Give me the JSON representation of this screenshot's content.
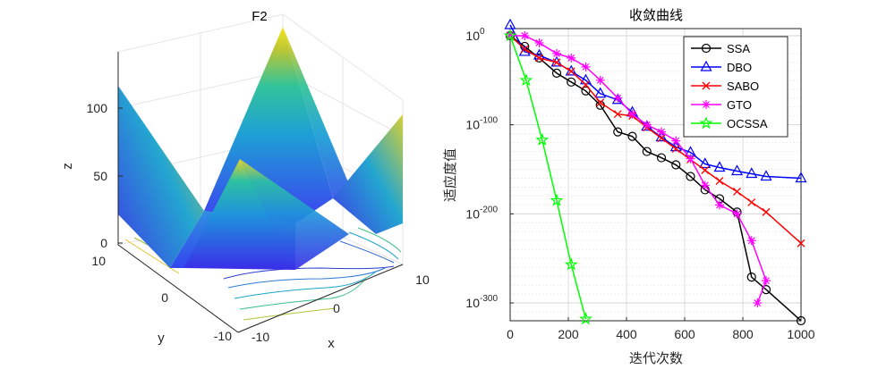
{
  "figure": {
    "left_panel": {
      "title": "F2",
      "xlabel": "x",
      "ylabel": "y",
      "zlabel": "z",
      "x_ticks": [
        "-10",
        "0",
        "10"
      ],
      "y_ticks": [
        "-10",
        "0",
        "10"
      ],
      "z_ticks": [
        "0",
        "50",
        "100"
      ]
    }
  },
  "chart_data": {
    "type": "line",
    "title": "收敛曲线",
    "xlabel": "迭代次数",
    "ylabel": "适应度值",
    "xlim": [
      0,
      1000
    ],
    "ylim_log10": [
      -320,
      8
    ],
    "yscale": "log",
    "x_ticks": [
      "0",
      "200",
      "400",
      "600",
      "800",
      "1000"
    ],
    "y_ticks": [
      {
        "base": "10",
        "exp": "0",
        "value_log10": 0
      },
      {
        "base": "10",
        "exp": "-100",
        "value_log10": -100
      },
      {
        "base": "10",
        "exp": "-200",
        "value_log10": -200
      },
      {
        "base": "10",
        "exp": "-300",
        "value_log10": -300
      }
    ],
    "legend_position": "top-right",
    "series": [
      {
        "name": "SSA",
        "color": "#000000",
        "marker": "circle",
        "x": [
          0,
          50,
          100,
          160,
          210,
          260,
          310,
          370,
          420,
          470,
          520,
          570,
          620,
          670,
          720,
          780,
          830,
          880,
          1000
        ],
        "log10_y": [
          0,
          -12,
          -25,
          -42,
          -52,
          -62,
          -78,
          -108,
          -113,
          -130,
          -137,
          -145,
          -158,
          -173,
          -183,
          -198,
          -271,
          -285,
          -320
        ]
      },
      {
        "name": "DBO",
        "color": "#0000ff",
        "marker": "triangle",
        "x": [
          0,
          50,
          100,
          160,
          210,
          260,
          310,
          370,
          420,
          470,
          520,
          570,
          620,
          670,
          720,
          780,
          830,
          880,
          1000
        ],
        "log10_y": [
          12,
          -18,
          -22,
          -30,
          -40,
          -50,
          -65,
          -72,
          -86,
          -102,
          -114,
          -125,
          -131,
          -144,
          -148,
          -152,
          -155,
          -158,
          -160
        ]
      },
      {
        "name": "SABO",
        "color": "#ff0000",
        "marker": "x",
        "x": [
          0,
          50,
          100,
          160,
          210,
          260,
          310,
          370,
          420,
          470,
          520,
          570,
          620,
          670,
          720,
          780,
          830,
          880,
          1000
        ],
        "log10_y": [
          0,
          -15,
          -25,
          -30,
          -40,
          -55,
          -75,
          -88,
          -90,
          -103,
          -115,
          -127,
          -139,
          -151,
          -163,
          -175,
          -187,
          -198,
          -233
        ]
      },
      {
        "name": "GTO",
        "color": "#ff00ff",
        "marker": "asterisk",
        "x": [
          0,
          50,
          100,
          160,
          210,
          260,
          310,
          370,
          420,
          470,
          520,
          570,
          620,
          670,
          720,
          780,
          830,
          880,
          850
        ],
        "log10_y": [
          0,
          0,
          -8,
          -20,
          -25,
          -35,
          -50,
          -70,
          -88,
          -100,
          -108,
          -118,
          -138,
          -168,
          -190,
          -200,
          -230,
          -275,
          -300
        ]
      },
      {
        "name": "OCSSA",
        "color": "#00ff00",
        "marker": "star",
        "x": [
          0,
          55,
          110,
          160,
          210,
          260
        ],
        "log10_y": [
          0,
          -50,
          -117,
          -185,
          -257,
          -318
        ]
      }
    ]
  }
}
